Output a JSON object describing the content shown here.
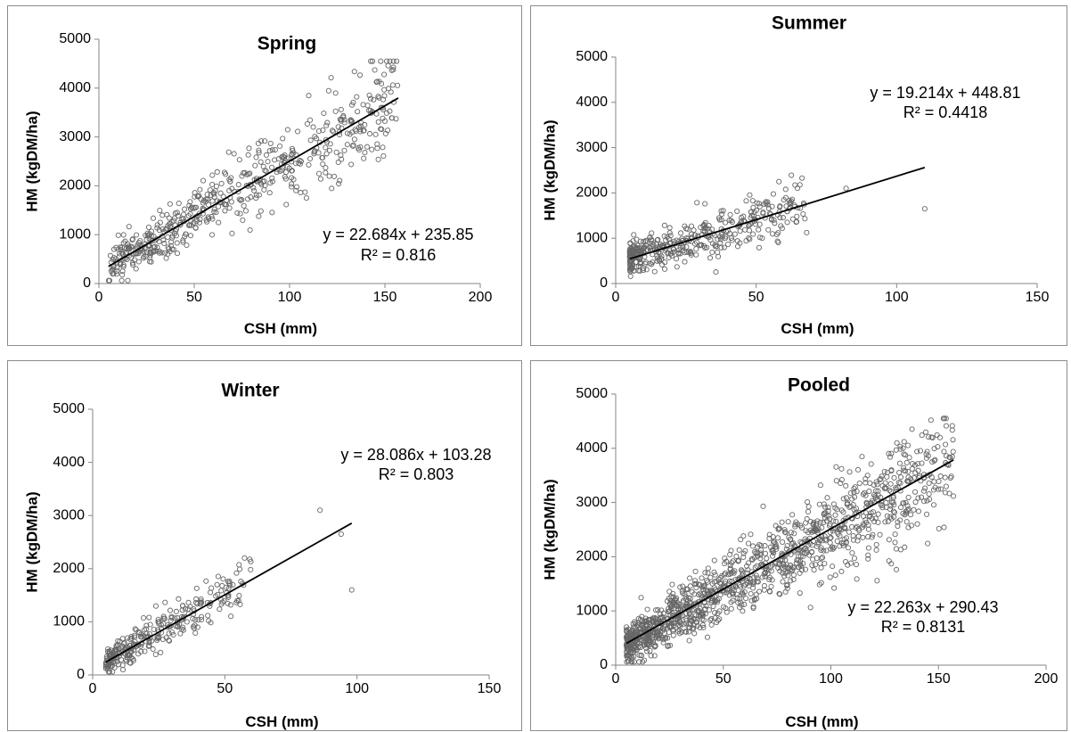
{
  "chart_data": [
    {
      "type": "scatter",
      "title": "Spring",
      "xlabel": "CSH (mm)",
      "ylabel": "HM (kgDM/ha)",
      "xlim": [
        0,
        200
      ],
      "ylim": [
        0,
        5000
      ],
      "xticks": [
        0,
        50,
        100,
        150,
        200
      ],
      "yticks": [
        0,
        1000,
        2000,
        3000,
        4000,
        5000
      ],
      "trendline": {
        "slope": 22.684,
        "intercept": 235.85,
        "x_range": [
          5,
          157
        ]
      },
      "equation": "y = 22.684x + 235.85",
      "r2": "R² = 0.816",
      "point_count": 560
    },
    {
      "type": "scatter",
      "title": "Summer",
      "xlabel": "CSH (mm)",
      "ylabel": "HM (kgDM/ha)",
      "xlim": [
        0,
        150
      ],
      "ylim": [
        0,
        5000
      ],
      "xticks": [
        0,
        50,
        100,
        150
      ],
      "yticks": [
        0,
        1000,
        2000,
        3000,
        4000,
        5000
      ],
      "trendline": {
        "slope": 19.214,
        "intercept": 448.81,
        "x_range": [
          5,
          110
        ]
      },
      "equation": "y = 19.214x + 448.81",
      "r2": "R² = 0.4418",
      "point_count": 420
    },
    {
      "type": "scatter",
      "title": "Winter",
      "xlabel": "CSH (mm)",
      "ylabel": "HM (kgDM/ha)",
      "xlim": [
        0,
        150
      ],
      "ylim": [
        0,
        5000
      ],
      "xticks": [
        0,
        50,
        100,
        150
      ],
      "yticks": [
        0,
        1000,
        2000,
        3000,
        4000,
        5000
      ],
      "trendline": {
        "slope": 28.086,
        "intercept": 103.28,
        "x_range": [
          5,
          98
        ]
      },
      "equation": "y = 28.086x + 103.28",
      "r2": "R² = 0.803",
      "point_count": 300
    },
    {
      "type": "scatter",
      "title": "Pooled",
      "xlabel": "CSH (mm)",
      "ylabel": "HM (kgDM/ha)",
      "xlim": [
        0,
        200
      ],
      "ylim": [
        0,
        5000
      ],
      "xticks": [
        0,
        50,
        100,
        150,
        200
      ],
      "yticks": [
        0,
        1000,
        2000,
        3000,
        4000,
        5000
      ],
      "trendline": {
        "slope": 22.263,
        "intercept": 290.43,
        "x_range": [
          5,
          157
        ]
      },
      "equation": "y = 22.263x + 290.43",
      "r2": "R² = 0.8131",
      "point_count": 1280
    }
  ]
}
